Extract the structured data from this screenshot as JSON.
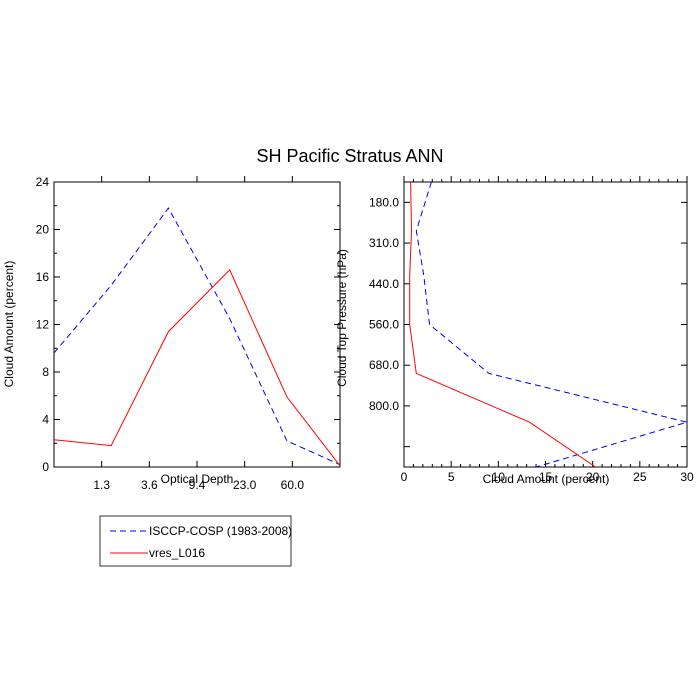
{
  "figure": {
    "title": "SH Pacific Stratus ANN"
  },
  "legend": {
    "entries": [
      {
        "name": "ISCCP-COSP (1983-2008)",
        "color": "#0000ee",
        "dash": "dashed"
      },
      {
        "name": "vres_L016",
        "color": "#ff0000",
        "dash": "solid"
      }
    ]
  },
  "chart_data": [
    {
      "type": "line",
      "title": "",
      "xlabel": "Optical Depth",
      "ylabel": "Cloud Amount (percent)",
      "x_tick_labels": [
        "1.3",
        "3.6",
        "9.4",
        "23.0",
        "60.0"
      ],
      "y_ticks": [
        0,
        4,
        8,
        12,
        16,
        20,
        24
      ],
      "y_tick_labels": [
        "0",
        "4",
        "8",
        "12",
        "16",
        "20",
        "24"
      ],
      "xlim": [
        0,
        7
      ],
      "ylim": [
        0,
        24
      ],
      "series": [
        {
          "name": "ISCCP-COSP (1983-2008)",
          "color": "#0000ee",
          "dash": "dashed",
          "points": [
            [
              0,
              9.6
            ],
            [
              1.4,
              15.3
            ],
            [
              2.8,
              21.8
            ],
            [
              4.3,
              12.5
            ],
            [
              5.7,
              2.2
            ],
            [
              7.0,
              0.2
            ]
          ]
        },
        {
          "name": "vres_L016",
          "color": "#ff0000",
          "dash": "solid",
          "points": [
            [
              0,
              2.3
            ],
            [
              1.4,
              1.8
            ],
            [
              2.8,
              11.4
            ],
            [
              4.3,
              16.6
            ],
            [
              5.7,
              5.9
            ],
            [
              7.0,
              0.1
            ]
          ]
        }
      ]
    },
    {
      "type": "line",
      "title": "",
      "xlabel": "Cloud Amount (percent)",
      "ylabel": "Cloud Top Pressure (hPa)",
      "x_ticks": [
        0,
        5,
        10,
        15,
        20,
        25,
        30
      ],
      "x_tick_labels": [
        "0",
        "5",
        "10",
        "15",
        "20",
        "25",
        "30"
      ],
      "y_tick_labels": [
        "180.0",
        "310.0",
        "440.0",
        "560.0",
        "680.0",
        "800.0"
      ],
      "xlim": [
        0,
        30
      ],
      "ylim": [
        0,
        7
      ],
      "series": [
        {
          "name": "ISCCP-COSP (1983-2008)",
          "color": "#0000ee",
          "dash": "dashed",
          "points": [
            [
              2.9,
              0
            ],
            [
              1.3,
              1.2
            ],
            [
              2.1,
              2.3
            ],
            [
              2.7,
              3.5
            ],
            [
              9.0,
              4.7
            ],
            [
              30.0,
              5.9
            ],
            [
              14.0,
              7.0
            ]
          ]
        },
        {
          "name": "vres_L016",
          "color": "#ff0000",
          "dash": "solid",
          "points": [
            [
              0.7,
              0
            ],
            [
              0.8,
              1.2
            ],
            [
              0.6,
              2.3
            ],
            [
              0.6,
              3.5
            ],
            [
              1.3,
              4.7
            ],
            [
              13.3,
              5.9
            ],
            [
              20.3,
              7.0
            ]
          ]
        }
      ]
    }
  ]
}
